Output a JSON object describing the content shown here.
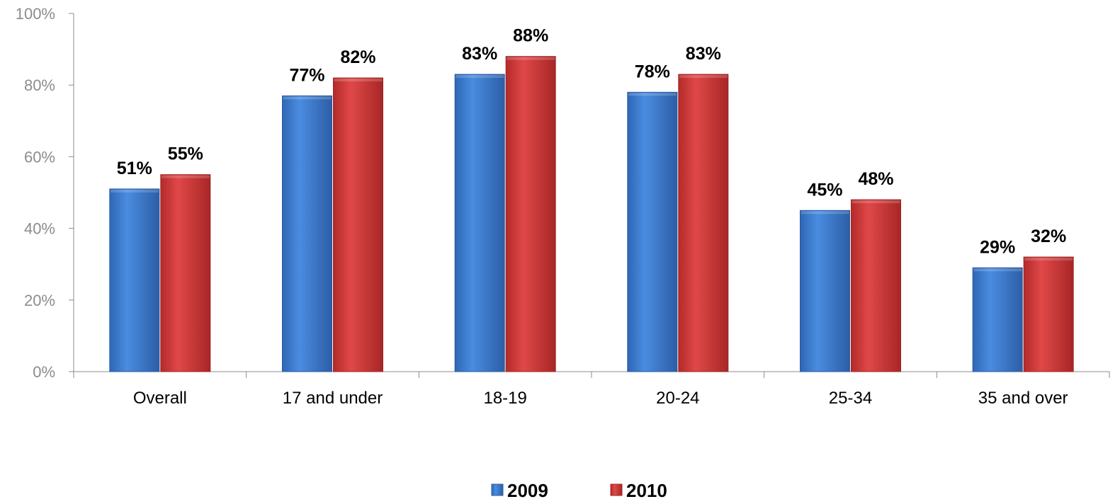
{
  "chart_data": {
    "type": "bar",
    "categories": [
      "Overall",
      "17 and under",
      "18-19",
      "20-24",
      "25-34",
      "35 and over"
    ],
    "series": [
      {
        "name": "2009",
        "values": [
          51,
          77,
          83,
          78,
          45,
          29
        ],
        "labels": [
          "51%",
          "77%",
          "83%",
          "78%",
          "45%",
          "29%"
        ],
        "color": "#3f7fd3"
      },
      {
        "name": "2010",
        "values": [
          55,
          82,
          88,
          83,
          48,
          32
        ],
        "labels": [
          "55%",
          "82%",
          "88%",
          "83%",
          "48%",
          "32%"
        ],
        "color": "#d93c3c"
      }
    ],
    "y_ticks": [
      0,
      20,
      40,
      60,
      80,
      100
    ],
    "y_tick_labels": [
      "0%",
      "20%",
      "40%",
      "60%",
      "80%",
      "100%"
    ],
    "ylim": [
      0,
      100
    ],
    "grid": false,
    "legend_position": "bottom"
  }
}
